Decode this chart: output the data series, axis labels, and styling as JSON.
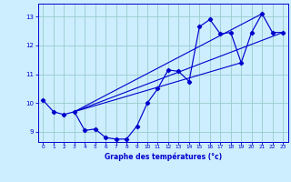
{
  "xlabel": "Graphe des températures (°c)",
  "background_color": "#cceeff",
  "grid_color": "#99cccc",
  "line_color": "#0000cc",
  "xlim": [
    -0.5,
    23.5
  ],
  "ylim": [
    8.65,
    13.45
  ],
  "xticks": [
    0,
    1,
    2,
    3,
    4,
    5,
    6,
    7,
    8,
    9,
    10,
    11,
    12,
    13,
    14,
    15,
    16,
    17,
    18,
    19,
    20,
    21,
    22,
    23
  ],
  "yticks": [
    9,
    10,
    11,
    12,
    13
  ],
  "main_x": [
    0,
    1,
    2,
    3,
    4,
    5,
    6,
    7,
    8,
    9,
    10,
    11,
    12,
    13,
    14,
    15,
    16,
    17,
    18,
    19,
    20,
    21,
    22,
    23
  ],
  "main_y": [
    10.1,
    9.7,
    9.6,
    9.7,
    9.05,
    9.1,
    8.8,
    8.75,
    8.75,
    9.2,
    10.0,
    10.5,
    11.15,
    11.1,
    10.75,
    12.65,
    12.9,
    12.4,
    12.45,
    11.4,
    12.45,
    13.1,
    12.45,
    12.45
  ],
  "trend_lines": [
    {
      "x": [
        3,
        23
      ],
      "y": [
        9.7,
        12.45
      ]
    },
    {
      "x": [
        3,
        21
      ],
      "y": [
        9.7,
        13.1
      ]
    },
    {
      "x": [
        3,
        19
      ],
      "y": [
        9.7,
        11.4
      ]
    }
  ]
}
